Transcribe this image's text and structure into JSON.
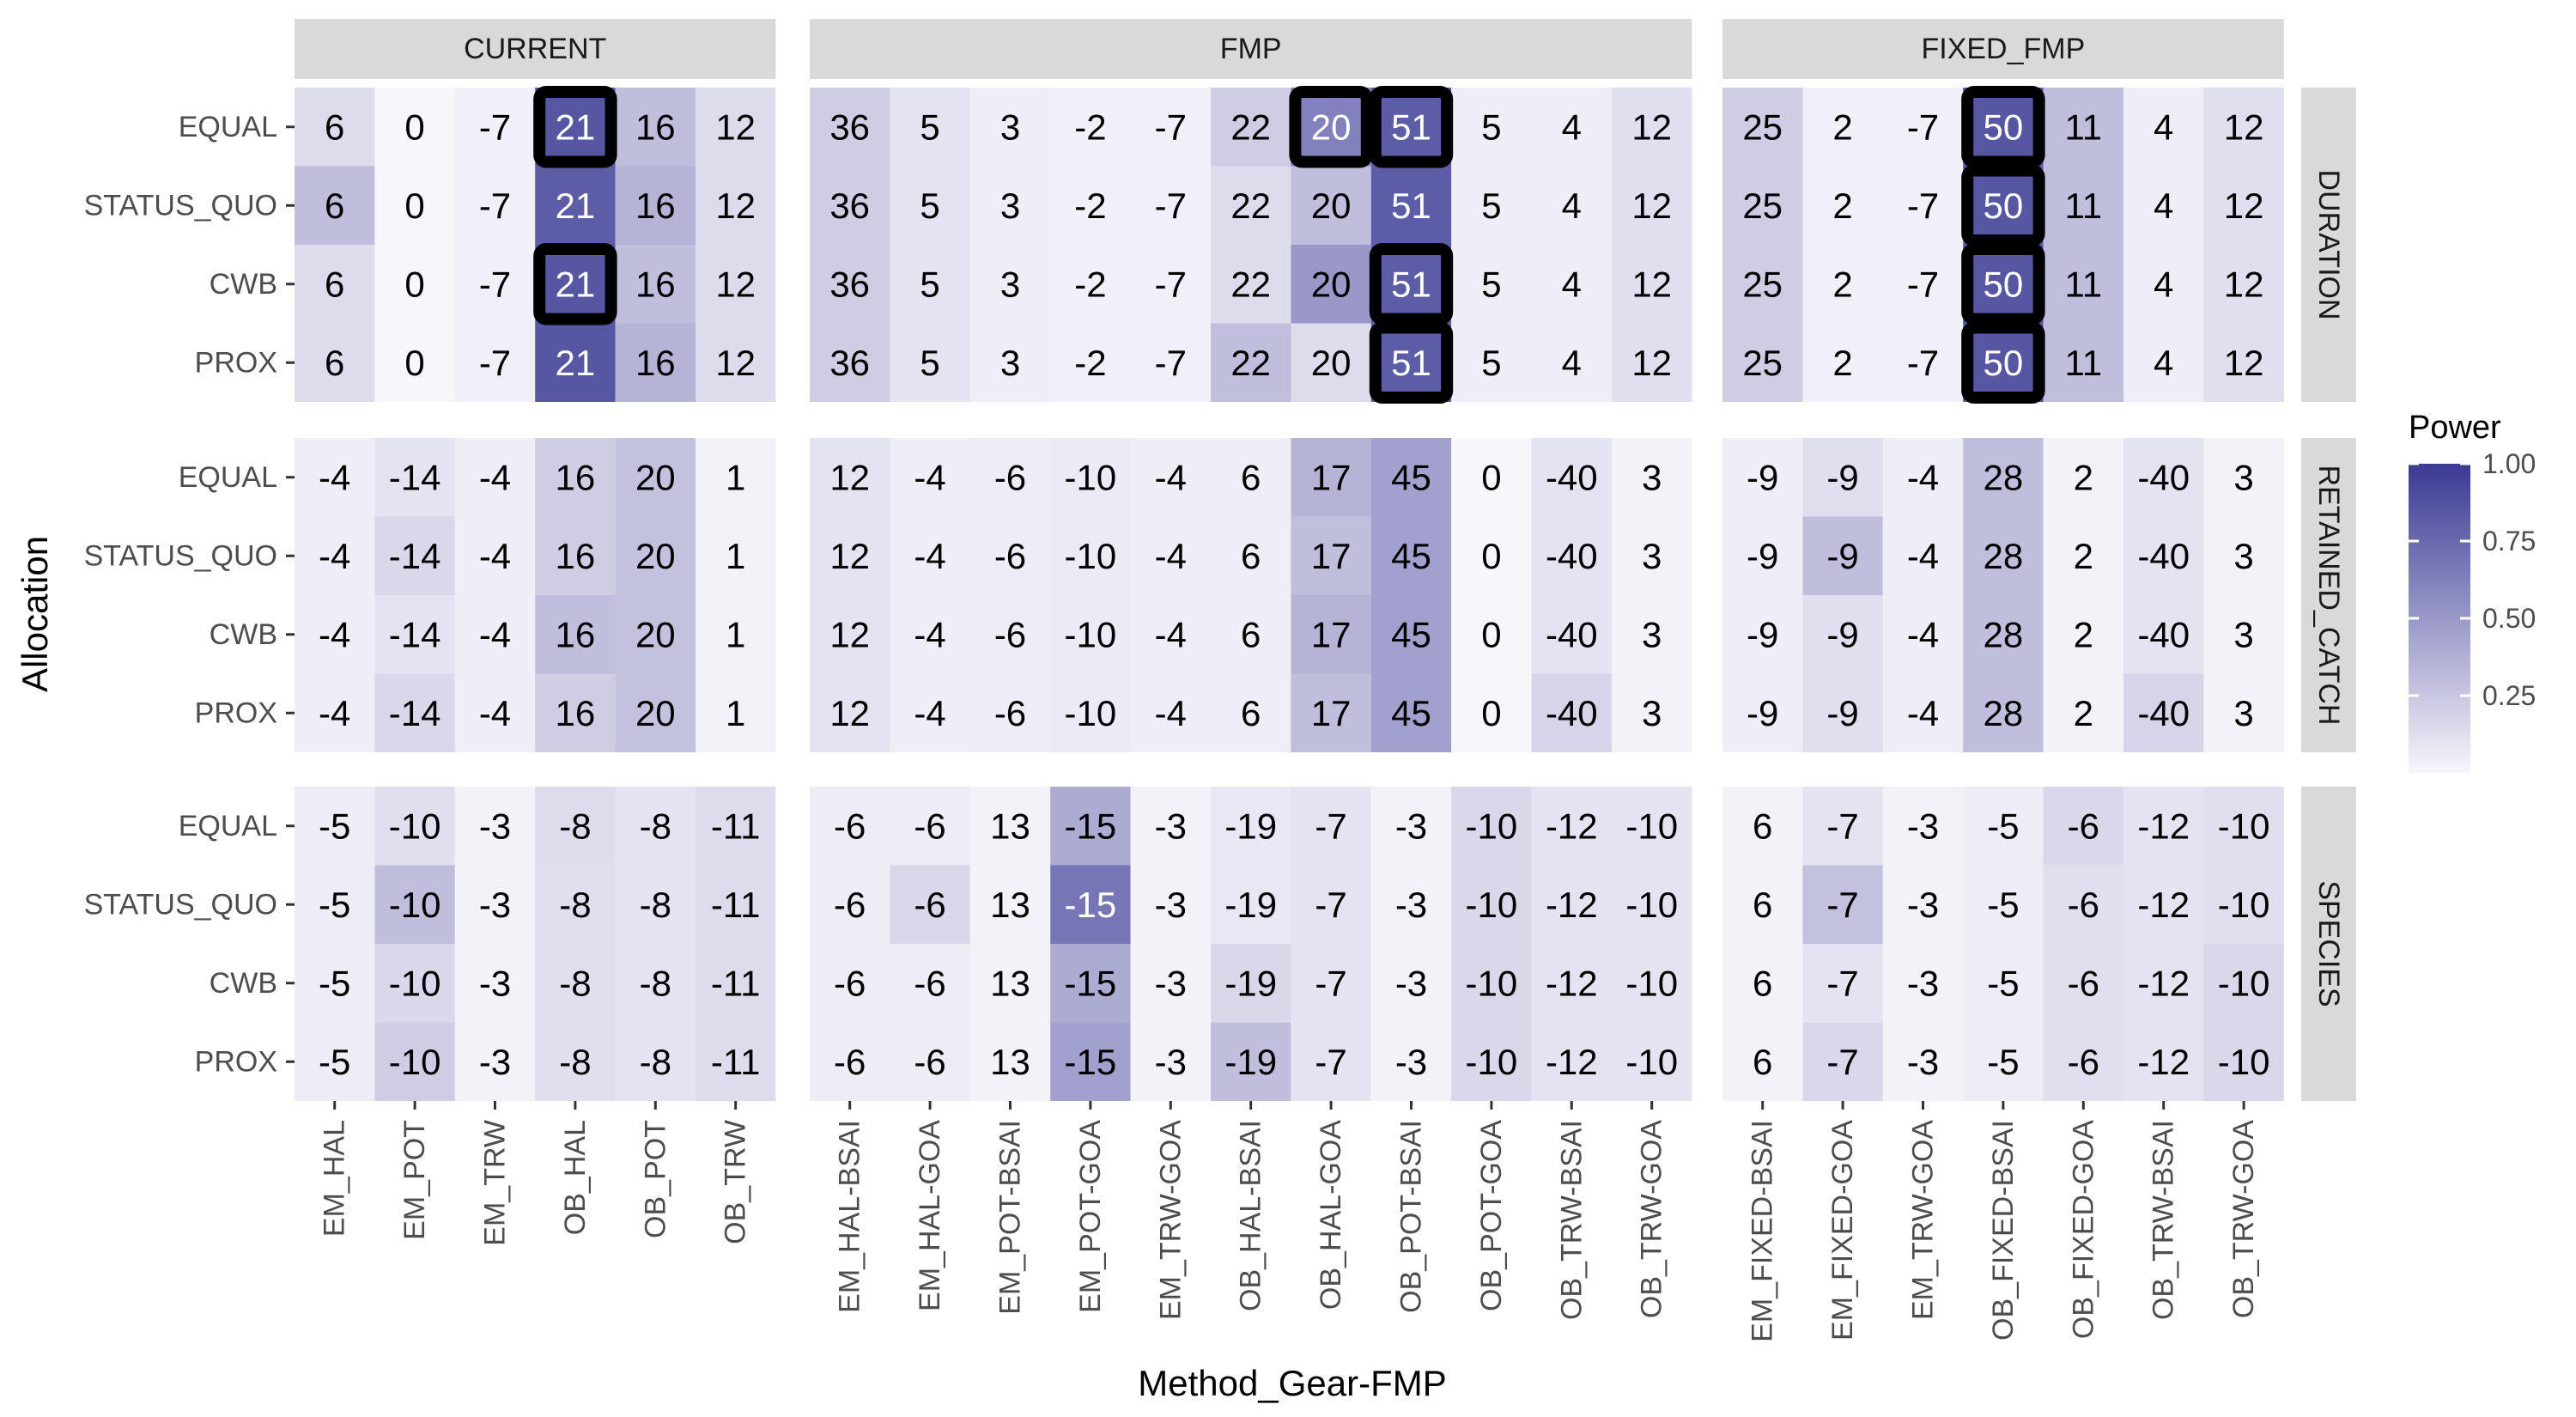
{
  "chart_data": {
    "type": "heatmap",
    "xlabel": "Method_Gear-FMP",
    "ylabel": "Allocation",
    "rows": [
      "EQUAL",
      "STATUS_QUO",
      "CWB",
      "PROX"
    ],
    "col_facets": [
      {
        "name": "CURRENT",
        "columns": [
          "EM_HAL",
          "EM_POT",
          "EM_TRW",
          "OB_HAL",
          "OB_POT",
          "OB_TRW"
        ]
      },
      {
        "name": "FMP",
        "columns": [
          "EM_HAL-BSAI",
          "EM_HAL-GOA",
          "EM_POT-BSAI",
          "EM_POT-GOA",
          "EM_TRW-GOA",
          "OB_HAL-BSAI",
          "OB_HAL-GOA",
          "OB_POT-BSAI",
          "OB_POT-GOA",
          "OB_TRW-BSAI",
          "OB_TRW-GOA"
        ]
      },
      {
        "name": "FIXED_FMP",
        "columns": [
          "EM_FIXED-BSAI",
          "EM_FIXED-GOA",
          "EM_TRW-GOA",
          "OB_FIXED-BSAI",
          "OB_FIXED-GOA",
          "OB_TRW-BSAI",
          "OB_TRW-GOA"
        ]
      }
    ],
    "row_facets": [
      "DURATION",
      "RETAINED_CATCH",
      "SPECIES"
    ],
    "legend": {
      "title": "Power",
      "ticks": [
        "1.00",
        "0.75",
        "0.50",
        "0.25"
      ],
      "tick_values": [
        1.0,
        0.75,
        0.5,
        0.25
      ],
      "range": [
        0.0,
        1.0
      ],
      "low_color": "#f7f6fb",
      "high_color": "#3b3a94"
    },
    "highlight_color": "#000000",
    "panels": [
      {
        "row_facet": "DURATION",
        "col_facet": "CURRENT",
        "labels": [
          [
            "6",
            "0",
            "-7",
            "21",
            "16",
            "12"
          ],
          [
            "6",
            "0",
            "-7",
            "21",
            "16",
            "12"
          ],
          [
            "6",
            "0",
            "-7",
            "21",
            "16",
            "12"
          ],
          [
            "6",
            "0",
            "-7",
            "21",
            "16",
            "12"
          ]
        ],
        "power": [
          [
            0.14,
            0.0,
            0.03,
            0.85,
            0.3,
            0.14
          ],
          [
            0.3,
            0.0,
            0.03,
            0.82,
            0.35,
            0.14
          ],
          [
            0.14,
            0.0,
            0.03,
            0.85,
            0.3,
            0.14
          ],
          [
            0.14,
            0.0,
            0.03,
            0.85,
            0.35,
            0.14
          ]
        ],
        "highlights": [
          [
            0,
            3
          ],
          [
            2,
            3
          ]
        ]
      },
      {
        "row_facet": "DURATION",
        "col_facet": "FMP",
        "labels": [
          [
            "36",
            "5",
            "3",
            "-2",
            "-7",
            "22",
            "20",
            "51",
            "5",
            "4",
            "12"
          ],
          [
            "36",
            "5",
            "3",
            "-2",
            "-7",
            "22",
            "20",
            "51",
            "5",
            "4",
            "12"
          ],
          [
            "36",
            "5",
            "3",
            "-2",
            "-7",
            "22",
            "20",
            "51",
            "5",
            "4",
            "12"
          ],
          [
            "36",
            "5",
            "3",
            "-2",
            "-7",
            "22",
            "20",
            "51",
            "5",
            "4",
            "12"
          ]
        ],
        "power": [
          [
            0.22,
            0.1,
            0.04,
            0.03,
            0.03,
            0.22,
            0.62,
            0.82,
            0.04,
            0.04,
            0.12
          ],
          [
            0.22,
            0.1,
            0.04,
            0.03,
            0.03,
            0.14,
            0.3,
            0.82,
            0.04,
            0.04,
            0.12
          ],
          [
            0.22,
            0.1,
            0.04,
            0.03,
            0.03,
            0.14,
            0.5,
            0.82,
            0.04,
            0.04,
            0.12
          ],
          [
            0.22,
            0.1,
            0.04,
            0.03,
            0.03,
            0.3,
            0.14,
            0.82,
            0.04,
            0.04,
            0.12
          ]
        ],
        "highlights": [
          [
            0,
            6
          ],
          [
            0,
            7
          ],
          [
            2,
            7
          ],
          [
            3,
            7
          ]
        ]
      },
      {
        "row_facet": "DURATION",
        "col_facet": "FIXED_FMP",
        "labels": [
          [
            "25",
            "2",
            "-7",
            "50",
            "11",
            "4",
            "12"
          ],
          [
            "25",
            "2",
            "-7",
            "50",
            "11",
            "4",
            "12"
          ],
          [
            "25",
            "2",
            "-7",
            "50",
            "11",
            "4",
            "12"
          ],
          [
            "25",
            "2",
            "-7",
            "50",
            "11",
            "4",
            "12"
          ]
        ],
        "power": [
          [
            0.22,
            0.03,
            0.03,
            0.85,
            0.3,
            0.04,
            0.12
          ],
          [
            0.22,
            0.03,
            0.03,
            0.85,
            0.3,
            0.04,
            0.12
          ],
          [
            0.22,
            0.03,
            0.03,
            0.85,
            0.3,
            0.04,
            0.12
          ],
          [
            0.22,
            0.03,
            0.03,
            0.85,
            0.3,
            0.04,
            0.12
          ]
        ],
        "highlights": [
          [
            0,
            3
          ],
          [
            1,
            3
          ],
          [
            2,
            3
          ],
          [
            3,
            3
          ]
        ]
      },
      {
        "row_facet": "RETAINED_CATCH",
        "col_facet": "CURRENT",
        "labels": [
          [
            "-4",
            "-14",
            "-4",
            "16",
            "20",
            "1"
          ],
          [
            "-4",
            "-14",
            "-4",
            "16",
            "20",
            "1"
          ],
          [
            "-4",
            "-14",
            "-4",
            "16",
            "20",
            "1"
          ],
          [
            "-4",
            "-14",
            "-4",
            "16",
            "20",
            "1"
          ]
        ],
        "power": [
          [
            0.04,
            0.1,
            0.04,
            0.22,
            0.28,
            0.02
          ],
          [
            0.04,
            0.16,
            0.04,
            0.22,
            0.28,
            0.02
          ],
          [
            0.04,
            0.1,
            0.04,
            0.3,
            0.28,
            0.02
          ],
          [
            0.04,
            0.16,
            0.04,
            0.22,
            0.28,
            0.02
          ]
        ],
        "highlights": []
      },
      {
        "row_facet": "RETAINED_CATCH",
        "col_facet": "FMP",
        "labels": [
          [
            "12",
            "-4",
            "-6",
            "-10",
            "-4",
            "6",
            "17",
            "45",
            "0",
            "-40",
            "3"
          ],
          [
            "12",
            "-4",
            "-6",
            "-10",
            "-4",
            "6",
            "17",
            "45",
            "0",
            "-40",
            "3"
          ],
          [
            "12",
            "-4",
            "-6",
            "-10",
            "-4",
            "6",
            "17",
            "45",
            "0",
            "-40",
            "3"
          ],
          [
            "12",
            "-4",
            "-6",
            "-10",
            "-4",
            "6",
            "17",
            "45",
            "0",
            "-40",
            "3"
          ]
        ],
        "power": [
          [
            0.1,
            0.04,
            0.05,
            0.06,
            0.04,
            0.04,
            0.35,
            0.45,
            0.0,
            0.1,
            0.02
          ],
          [
            0.1,
            0.04,
            0.05,
            0.06,
            0.04,
            0.04,
            0.3,
            0.45,
            0.0,
            0.1,
            0.02
          ],
          [
            0.1,
            0.04,
            0.05,
            0.06,
            0.04,
            0.04,
            0.35,
            0.45,
            0.0,
            0.1,
            0.02
          ],
          [
            0.1,
            0.04,
            0.05,
            0.06,
            0.04,
            0.04,
            0.3,
            0.45,
            0.0,
            0.18,
            0.02
          ]
        ],
        "highlights": []
      },
      {
        "row_facet": "RETAINED_CATCH",
        "col_facet": "FIXED_FMP",
        "labels": [
          [
            "-9",
            "-9",
            "-4",
            "28",
            "2",
            "-40",
            "3"
          ],
          [
            "-9",
            "-9",
            "-4",
            "28",
            "2",
            "-40",
            "3"
          ],
          [
            "-9",
            "-9",
            "-4",
            "28",
            "2",
            "-40",
            "3"
          ],
          [
            "-9",
            "-9",
            "-4",
            "28",
            "2",
            "-40",
            "3"
          ]
        ],
        "power": [
          [
            0.04,
            0.12,
            0.04,
            0.3,
            0.02,
            0.1,
            0.02
          ],
          [
            0.04,
            0.3,
            0.04,
            0.3,
            0.02,
            0.1,
            0.02
          ],
          [
            0.04,
            0.12,
            0.04,
            0.3,
            0.02,
            0.1,
            0.02
          ],
          [
            0.04,
            0.12,
            0.04,
            0.3,
            0.02,
            0.18,
            0.02
          ]
        ],
        "highlights": []
      },
      {
        "row_facet": "SPECIES",
        "col_facet": "CURRENT",
        "labels": [
          [
            "-5",
            "-10",
            "-3",
            "-8",
            "-8",
            "-11"
          ],
          [
            "-5",
            "-10",
            "-3",
            "-8",
            "-8",
            "-11"
          ],
          [
            "-5",
            "-10",
            "-3",
            "-8",
            "-8",
            "-11"
          ],
          [
            "-5",
            "-10",
            "-3",
            "-8",
            "-8",
            "-11"
          ]
        ],
        "power": [
          [
            0.05,
            0.12,
            0.02,
            0.14,
            0.1,
            0.14
          ],
          [
            0.05,
            0.3,
            0.02,
            0.12,
            0.1,
            0.14
          ],
          [
            0.05,
            0.16,
            0.02,
            0.12,
            0.1,
            0.14
          ],
          [
            0.05,
            0.22,
            0.02,
            0.12,
            0.1,
            0.14
          ]
        ],
        "highlights": []
      },
      {
        "row_facet": "SPECIES",
        "col_facet": "FMP",
        "labels": [
          [
            "-6",
            "-6",
            "13",
            "-15",
            "-3",
            "-19",
            "-7",
            "-3",
            "-10",
            "-12",
            "-10"
          ],
          [
            "-6",
            "-6",
            "13",
            "-15",
            "-3",
            "-19",
            "-7",
            "-3",
            "-10",
            "-12",
            "-10"
          ],
          [
            "-6",
            "-6",
            "13",
            "-15",
            "-3",
            "-19",
            "-7",
            "-3",
            "-10",
            "-12",
            "-10"
          ],
          [
            "-6",
            "-6",
            "13",
            "-15",
            "-3",
            "-19",
            "-7",
            "-3",
            "-10",
            "-12",
            "-10"
          ]
        ],
        "power": [
          [
            0.05,
            0.05,
            0.02,
            0.4,
            0.02,
            0.08,
            0.1,
            0.02,
            0.16,
            0.1,
            0.1
          ],
          [
            0.05,
            0.16,
            0.02,
            0.68,
            0.02,
            0.08,
            0.1,
            0.02,
            0.16,
            0.1,
            0.1
          ],
          [
            0.05,
            0.05,
            0.02,
            0.4,
            0.02,
            0.16,
            0.1,
            0.02,
            0.16,
            0.1,
            0.1
          ],
          [
            0.05,
            0.05,
            0.02,
            0.45,
            0.02,
            0.3,
            0.1,
            0.02,
            0.16,
            0.1,
            0.1
          ]
        ],
        "highlights": []
      },
      {
        "row_facet": "SPECIES",
        "col_facet": "FIXED_FMP",
        "labels": [
          [
            "6",
            "-7",
            "-3",
            "-5",
            "-6",
            "-12",
            "-10"
          ],
          [
            "6",
            "-7",
            "-3",
            "-5",
            "-6",
            "-12",
            "-10"
          ],
          [
            "6",
            "-7",
            "-3",
            "-5",
            "-6",
            "-12",
            "-10"
          ],
          [
            "6",
            "-7",
            "-3",
            "-5",
            "-6",
            "-12",
            "-10"
          ]
        ],
        "power": [
          [
            0.02,
            0.1,
            0.02,
            0.05,
            0.16,
            0.1,
            0.12
          ],
          [
            0.02,
            0.28,
            0.02,
            0.05,
            0.12,
            0.1,
            0.12
          ],
          [
            0.02,
            0.1,
            0.02,
            0.05,
            0.12,
            0.1,
            0.16
          ],
          [
            0.02,
            0.16,
            0.02,
            0.05,
            0.12,
            0.1,
            0.16
          ]
        ],
        "highlights": []
      }
    ]
  }
}
